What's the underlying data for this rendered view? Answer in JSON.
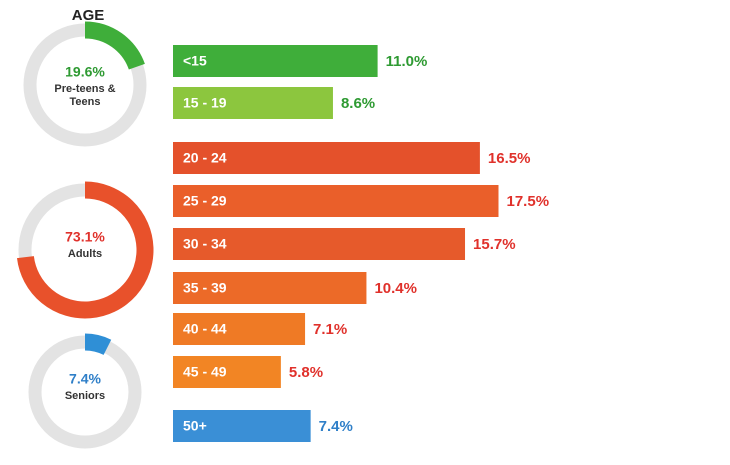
{
  "chart_data": [
    {
      "type": "bar",
      "title": "AGE",
      "categories": [
        "<15",
        "15 - 19",
        "20 - 24",
        "25 - 29",
        "30 - 34",
        "35 - 39",
        "40 - 44",
        "45 - 49",
        "50+"
      ],
      "values": [
        11.0,
        8.6,
        16.5,
        17.5,
        15.7,
        10.4,
        7.1,
        5.8,
        7.4
      ],
      "value_labels": [
        "11.0%",
        "8.6%",
        "16.5%",
        "17.5%",
        "15.7%",
        "10.4%",
        "7.1%",
        "5.8%",
        "7.4%"
      ],
      "colors": [
        "#3fae3a",
        "#8cc63e",
        "#e4512b",
        "#ea5f2a",
        "#e65a2b",
        "#ec6a28",
        "#ef7a25",
        "#f28524",
        "#3a8fd6"
      ],
      "label_colors": [
        "#2e9a32",
        "#2e9a32",
        "#e0312b",
        "#e0312b",
        "#e0312b",
        "#e0312b",
        "#e0312b",
        "#e0312b",
        "#2f7fc8"
      ]
    },
    {
      "type": "donut",
      "categories": [
        "Pre-teens & Teens",
        "Adults",
        "Seniors"
      ],
      "values": [
        19.6,
        73.1,
        7.4
      ],
      "value_labels": [
        "19.6%",
        "73.1%",
        "7.4%"
      ],
      "colors": [
        "#3fae3a",
        "#e8512b",
        "#2f8fd6"
      ],
      "label_colors": [
        "#2e9a32",
        "#e0312b",
        "#2f7fc8"
      ]
    }
  ]
}
